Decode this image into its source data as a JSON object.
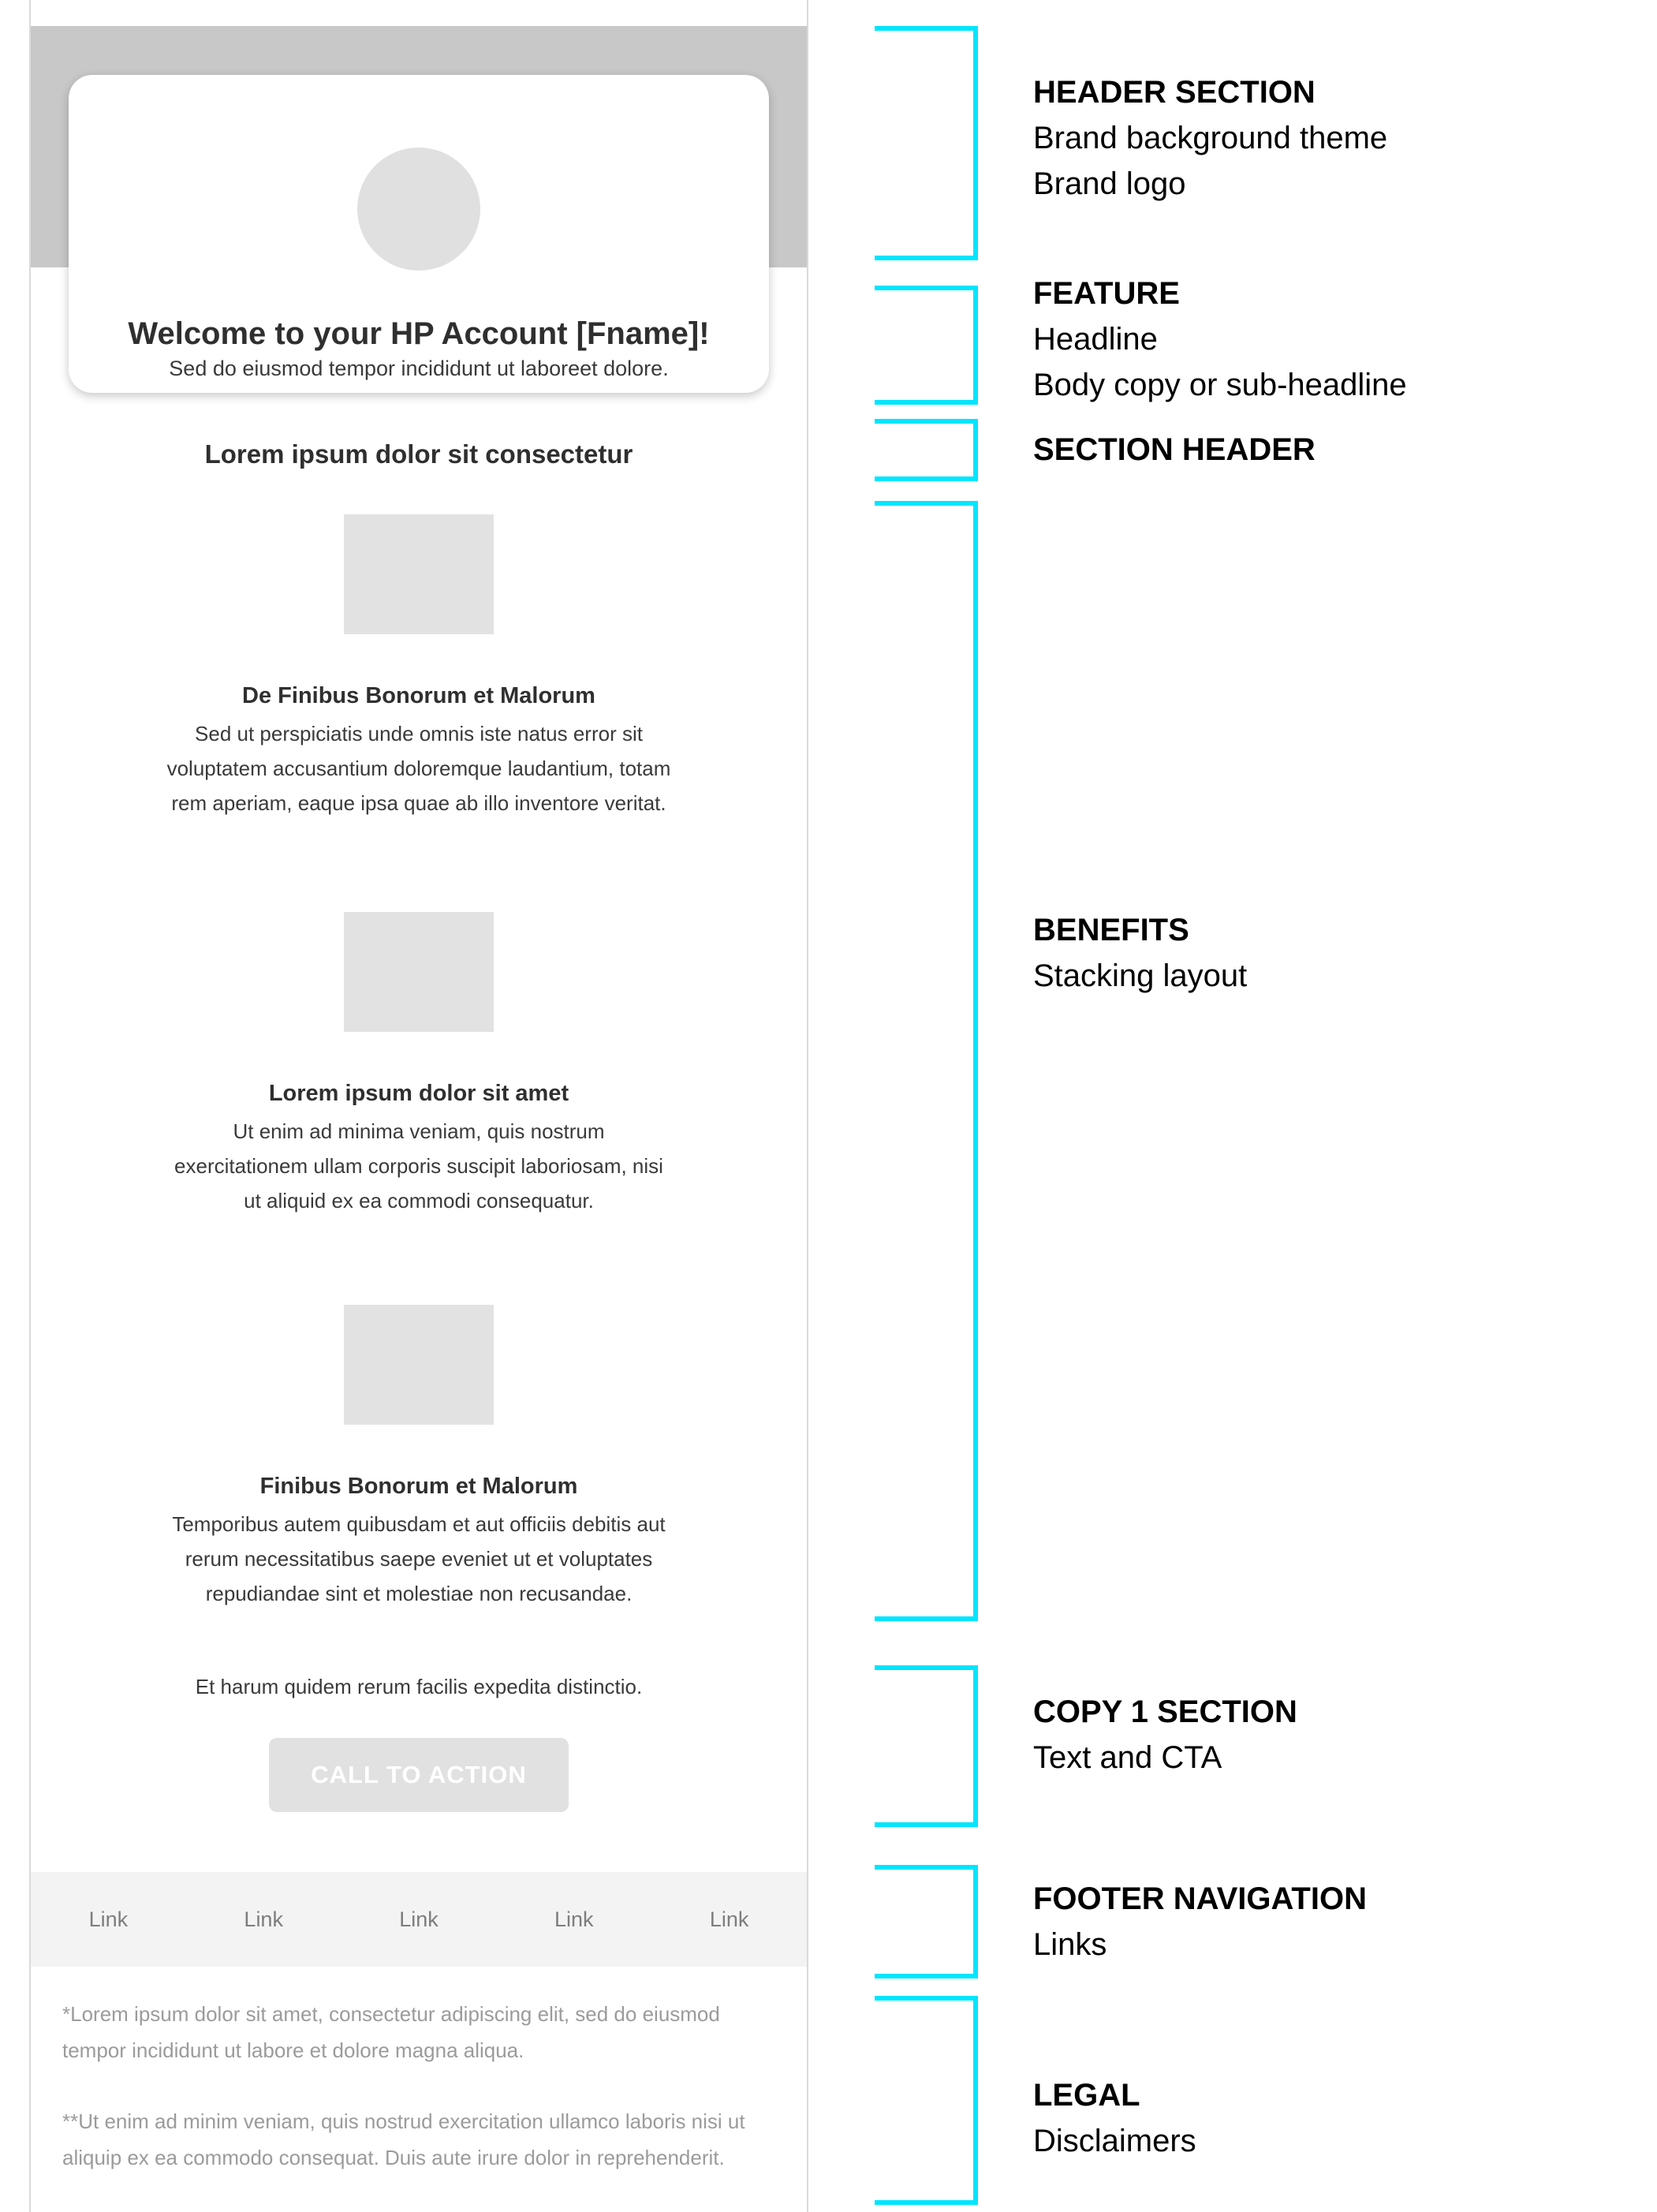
{
  "email": {
    "header": {
      "description": "brand header band",
      "logo_icon": "brand-logo-circle-placeholder"
    },
    "feature": {
      "headline": "Welcome to your HP Account [Fname]!",
      "subheadline": "Sed do eiusmod tempor incididunt ut laboreet dolore."
    },
    "section_header": "Lorem ipsum dolor sit consectetur",
    "benefits": [
      {
        "image_icon": "image-placeholder",
        "title": "De Finibus Bonorum et Malorum",
        "body": "Sed ut perspiciatis unde omnis iste natus error sit\nvoluptatem accusantium doloremque laudantium, totam\nrem aperiam, eaque ipsa quae ab illo inventore veritat."
      },
      {
        "image_icon": "image-placeholder",
        "title": "Lorem ipsum dolor sit amet",
        "body": "Ut enim ad minima veniam, quis nostrum\nexercitationem ullam corporis suscipit laboriosam, nisi\nut aliquid ex ea commodi consequatur."
      },
      {
        "image_icon": "image-placeholder",
        "title": "Finibus Bonorum et Malorum",
        "body": "Temporibus autem quibusdam et aut officiis debitis aut\nrerum necessitatibus saepe eveniet ut et voluptates\nrepudiandae sint et molestiae non recusandae."
      }
    ],
    "copy1": {
      "text": "Et harum quidem rerum facilis expedita distinctio.",
      "cta_label": "CALL TO ACTION"
    },
    "footer_nav": {
      "links": [
        "Link",
        "Link",
        "Link",
        "Link",
        "Link"
      ]
    },
    "legal": {
      "disclaimers": [
        "*Lorem ipsum dolor sit amet, consectetur adipiscing elit, sed do eiusmod\ntempor incididunt ut labore et dolore magna aliqua.",
        "**Ut enim ad minim veniam, quis nostrud exercitation ullamco laboris nisi ut\naliquip ex ea commodo consequat. Duis aute irure dolor in reprehenderit."
      ]
    }
  },
  "annotations": [
    {
      "title": "HEADER SECTION",
      "labels": [
        "Brand background theme",
        "Brand logo"
      ]
    },
    {
      "title": "FEATURE",
      "labels": [
        "Headline",
        "Body copy or sub-headline"
      ]
    },
    {
      "title": "SECTION HEADER",
      "labels": []
    },
    {
      "title": "BENEFITS",
      "labels": [
        "Stacking layout"
      ]
    },
    {
      "title": "COPY 1 SECTION",
      "labels": [
        "Text and CTA"
      ]
    },
    {
      "title": "FOOTER NAVIGATION",
      "labels": [
        "Links"
      ]
    },
    {
      "title": "LEGAL",
      "labels": [
        "Disclaimers"
      ]
    }
  ],
  "colors": {
    "annotation_accent": "#00e5ff",
    "header_band": "#c8c8c8",
    "logo_placeholder": "#e0e0e0",
    "image_placeholder": "#e2e2e2",
    "cta_background": "#e1e1e1",
    "cta_text": "#ffffff",
    "footer_band": "#f3f3f3",
    "link_text": "#7d7d7d",
    "legal_text": "#9b9b9b"
  }
}
